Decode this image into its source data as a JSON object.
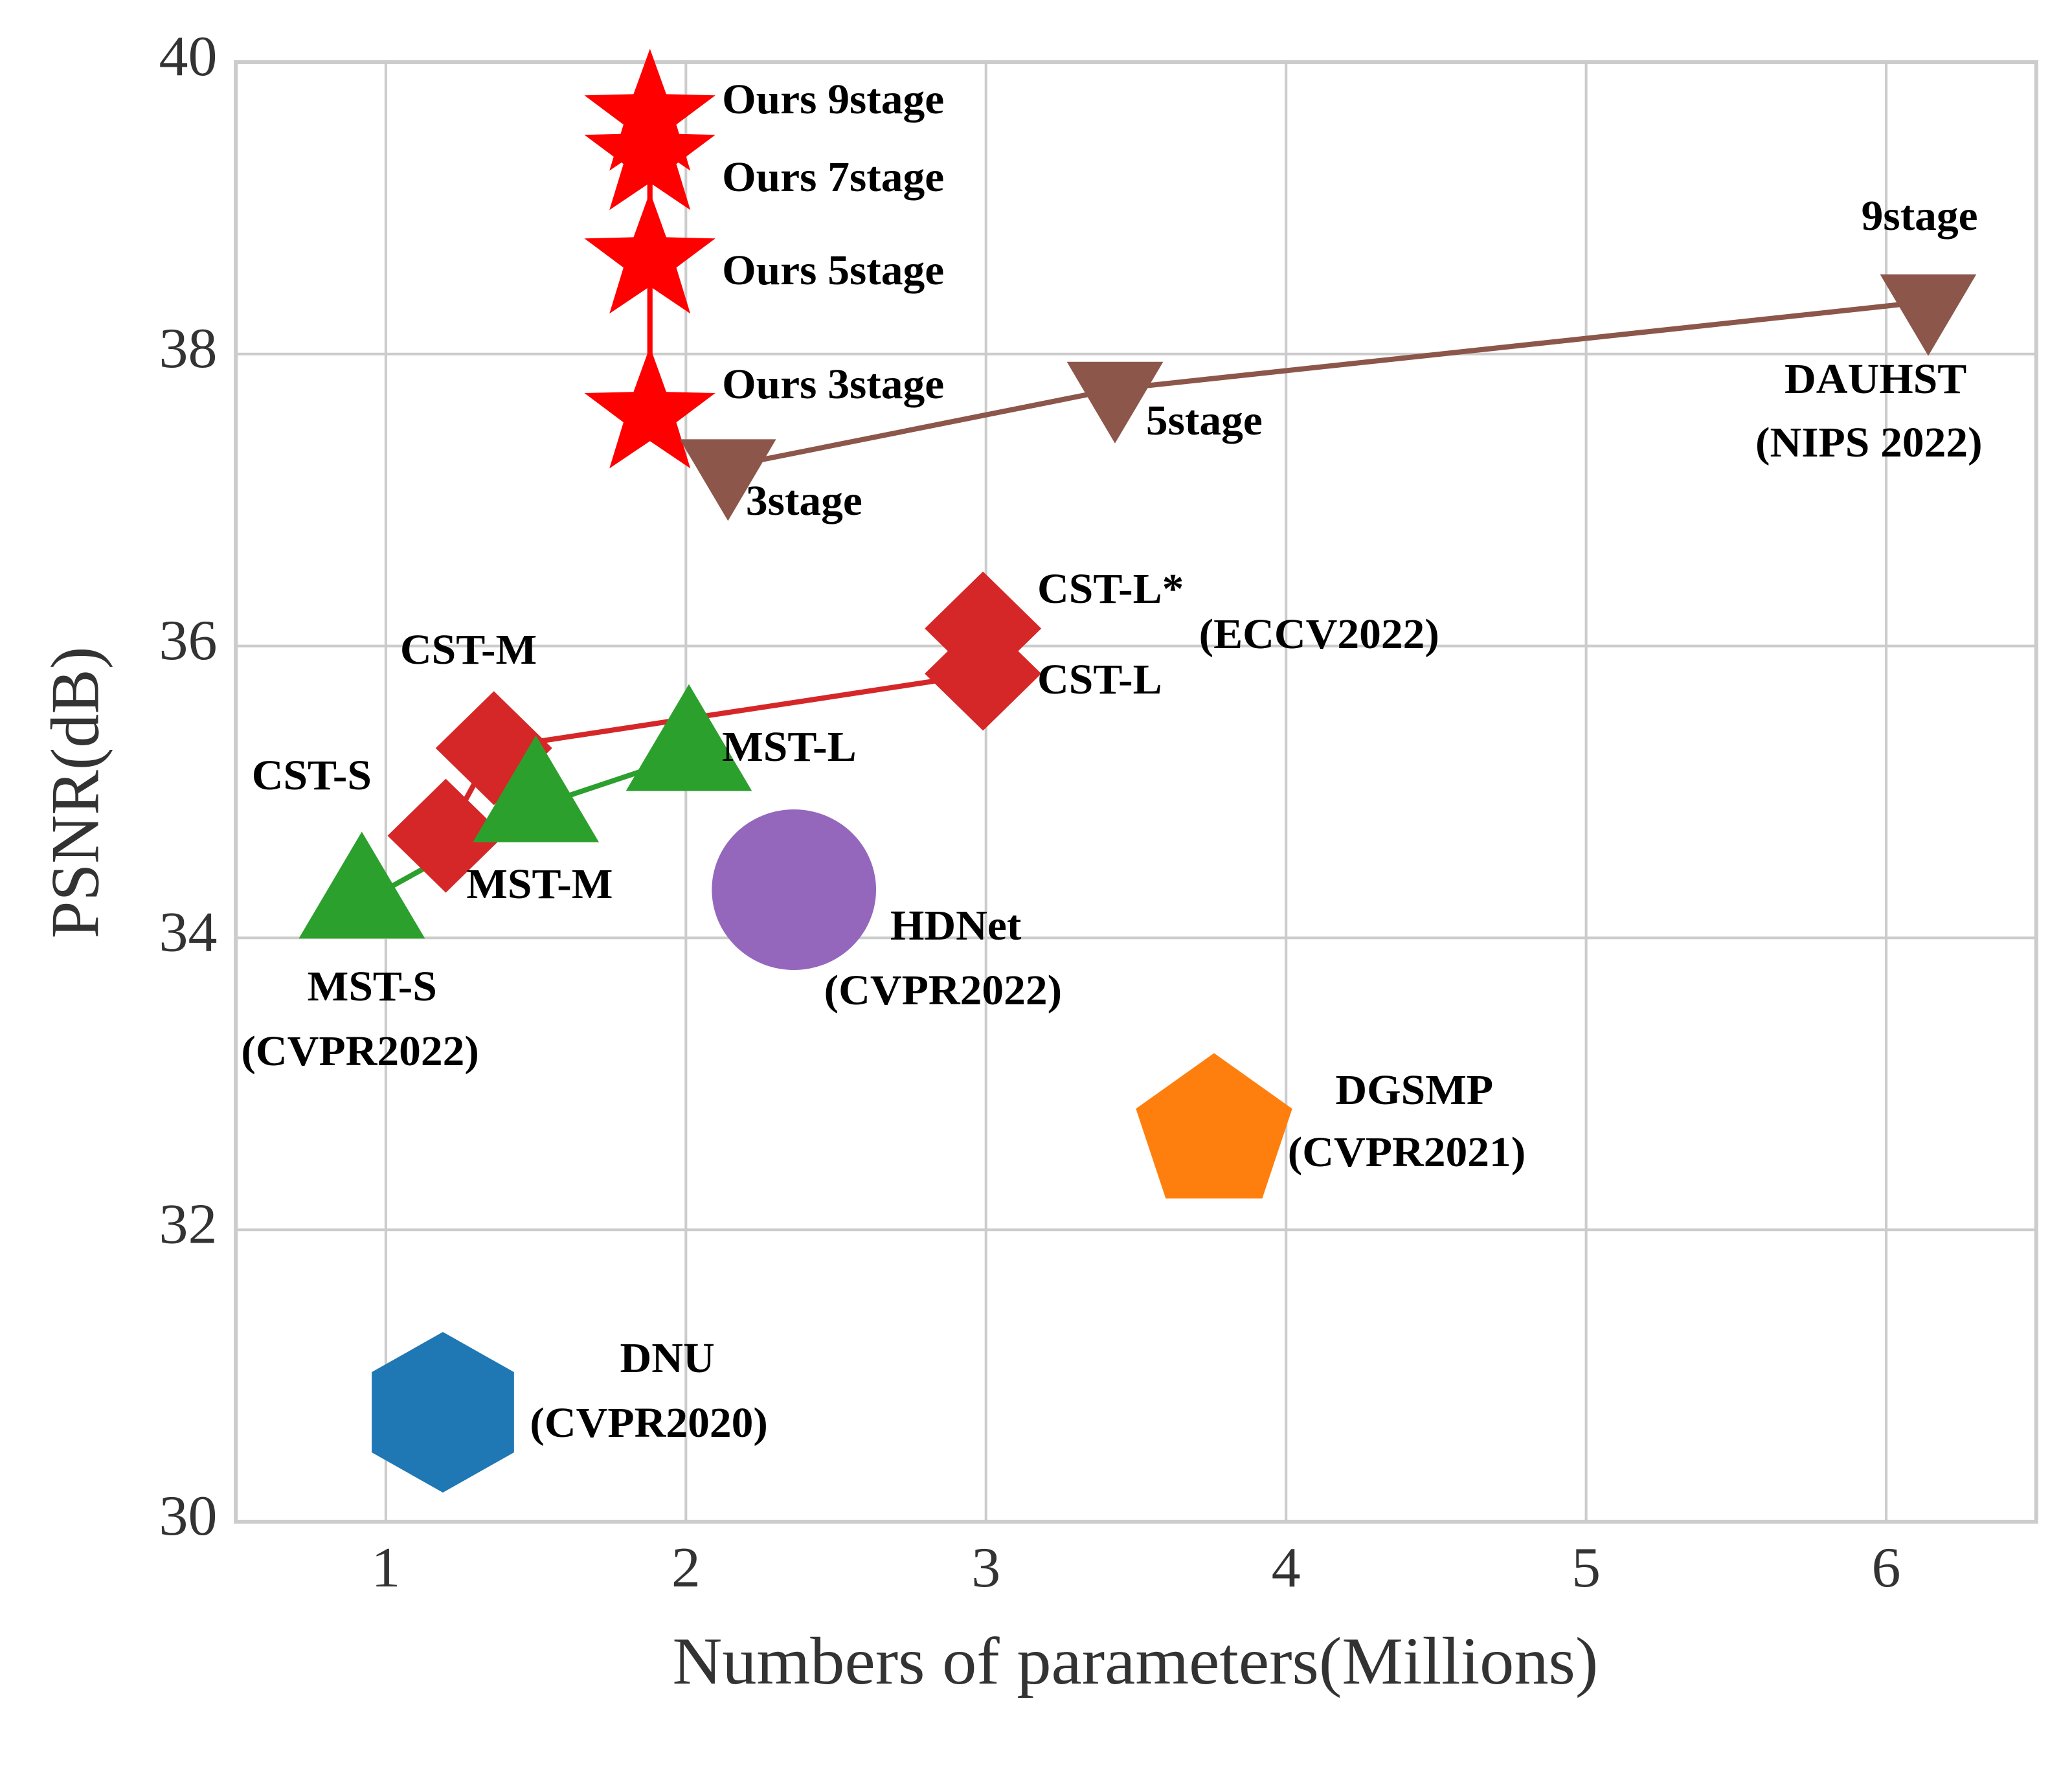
{
  "chart_data": {
    "type": "scatter",
    "xlabel": "Numbers of parameters(Millions)",
    "ylabel": "PSNR(dB)",
    "xlim": [
      0.5,
      6.5
    ],
    "ylim": [
      30,
      40
    ],
    "xticks": [
      1,
      2,
      3,
      4,
      5,
      6
    ],
    "yticks": [
      30,
      32,
      34,
      36,
      38,
      40
    ],
    "grid": true,
    "series": [
      {
        "marker": "star",
        "color": "#ff0000",
        "line": true,
        "x": [
          1.88,
          1.88,
          1.88,
          1.88
        ],
        "values": [
          37.59,
          38.65,
          39.36,
          39.63
        ]
      },
      {
        "marker": "triangle-down",
        "color": "#8c564b",
        "line": true,
        "x": [
          2.14,
          3.43,
          6.14
        ],
        "values": [
          37.23,
          37.76,
          38.36
        ]
      },
      {
        "marker": "diamond",
        "color": "#d62728",
        "line": true,
        "x": [
          1.2,
          1.36,
          2.99
        ],
        "values": [
          34.7,
          35.3,
          35.81
        ]
      },
      {
        "marker": "diamond",
        "color": "#d62728",
        "line": false,
        "x": [
          2.99
        ],
        "values": [
          36.12
        ]
      },
      {
        "marker": "triangle-up",
        "color": "#2ca02c",
        "line": true,
        "x": [
          0.92,
          1.5,
          2.01
        ],
        "values": [
          34.24,
          34.9,
          35.25
        ]
      },
      {
        "marker": "circle",
        "color": "#9467bd",
        "line": false,
        "x": [
          2.36
        ],
        "values": [
          34.33
        ]
      },
      {
        "marker": "pentagon",
        "color": "#ff7f0e",
        "line": false,
        "x": [
          3.76
        ],
        "values": [
          32.66
        ]
      },
      {
        "marker": "hexagon",
        "color": "#1f77b4",
        "line": false,
        "x": [
          1.19
        ],
        "values": [
          30.75
        ]
      }
    ],
    "annotations": [
      "Ours 9stage",
      "Ours 7stage",
      "Ours 5stage",
      "Ours 3stage",
      "3stage",
      "5stage",
      "9stage",
      "DAUHST",
      "(NIPS 2022)",
      "CST-L*",
      "(ECCV2022)",
      "CST-L",
      "CST-M",
      "CST-S",
      "MST-L",
      "MST-M",
      "MST-S",
      "(CVPR2022)",
      "HDNet",
      "(CVPR2022)",
      "DGSMP",
      "(CVPR2021)",
      "DNU",
      "(CVPR2020)"
    ]
  }
}
